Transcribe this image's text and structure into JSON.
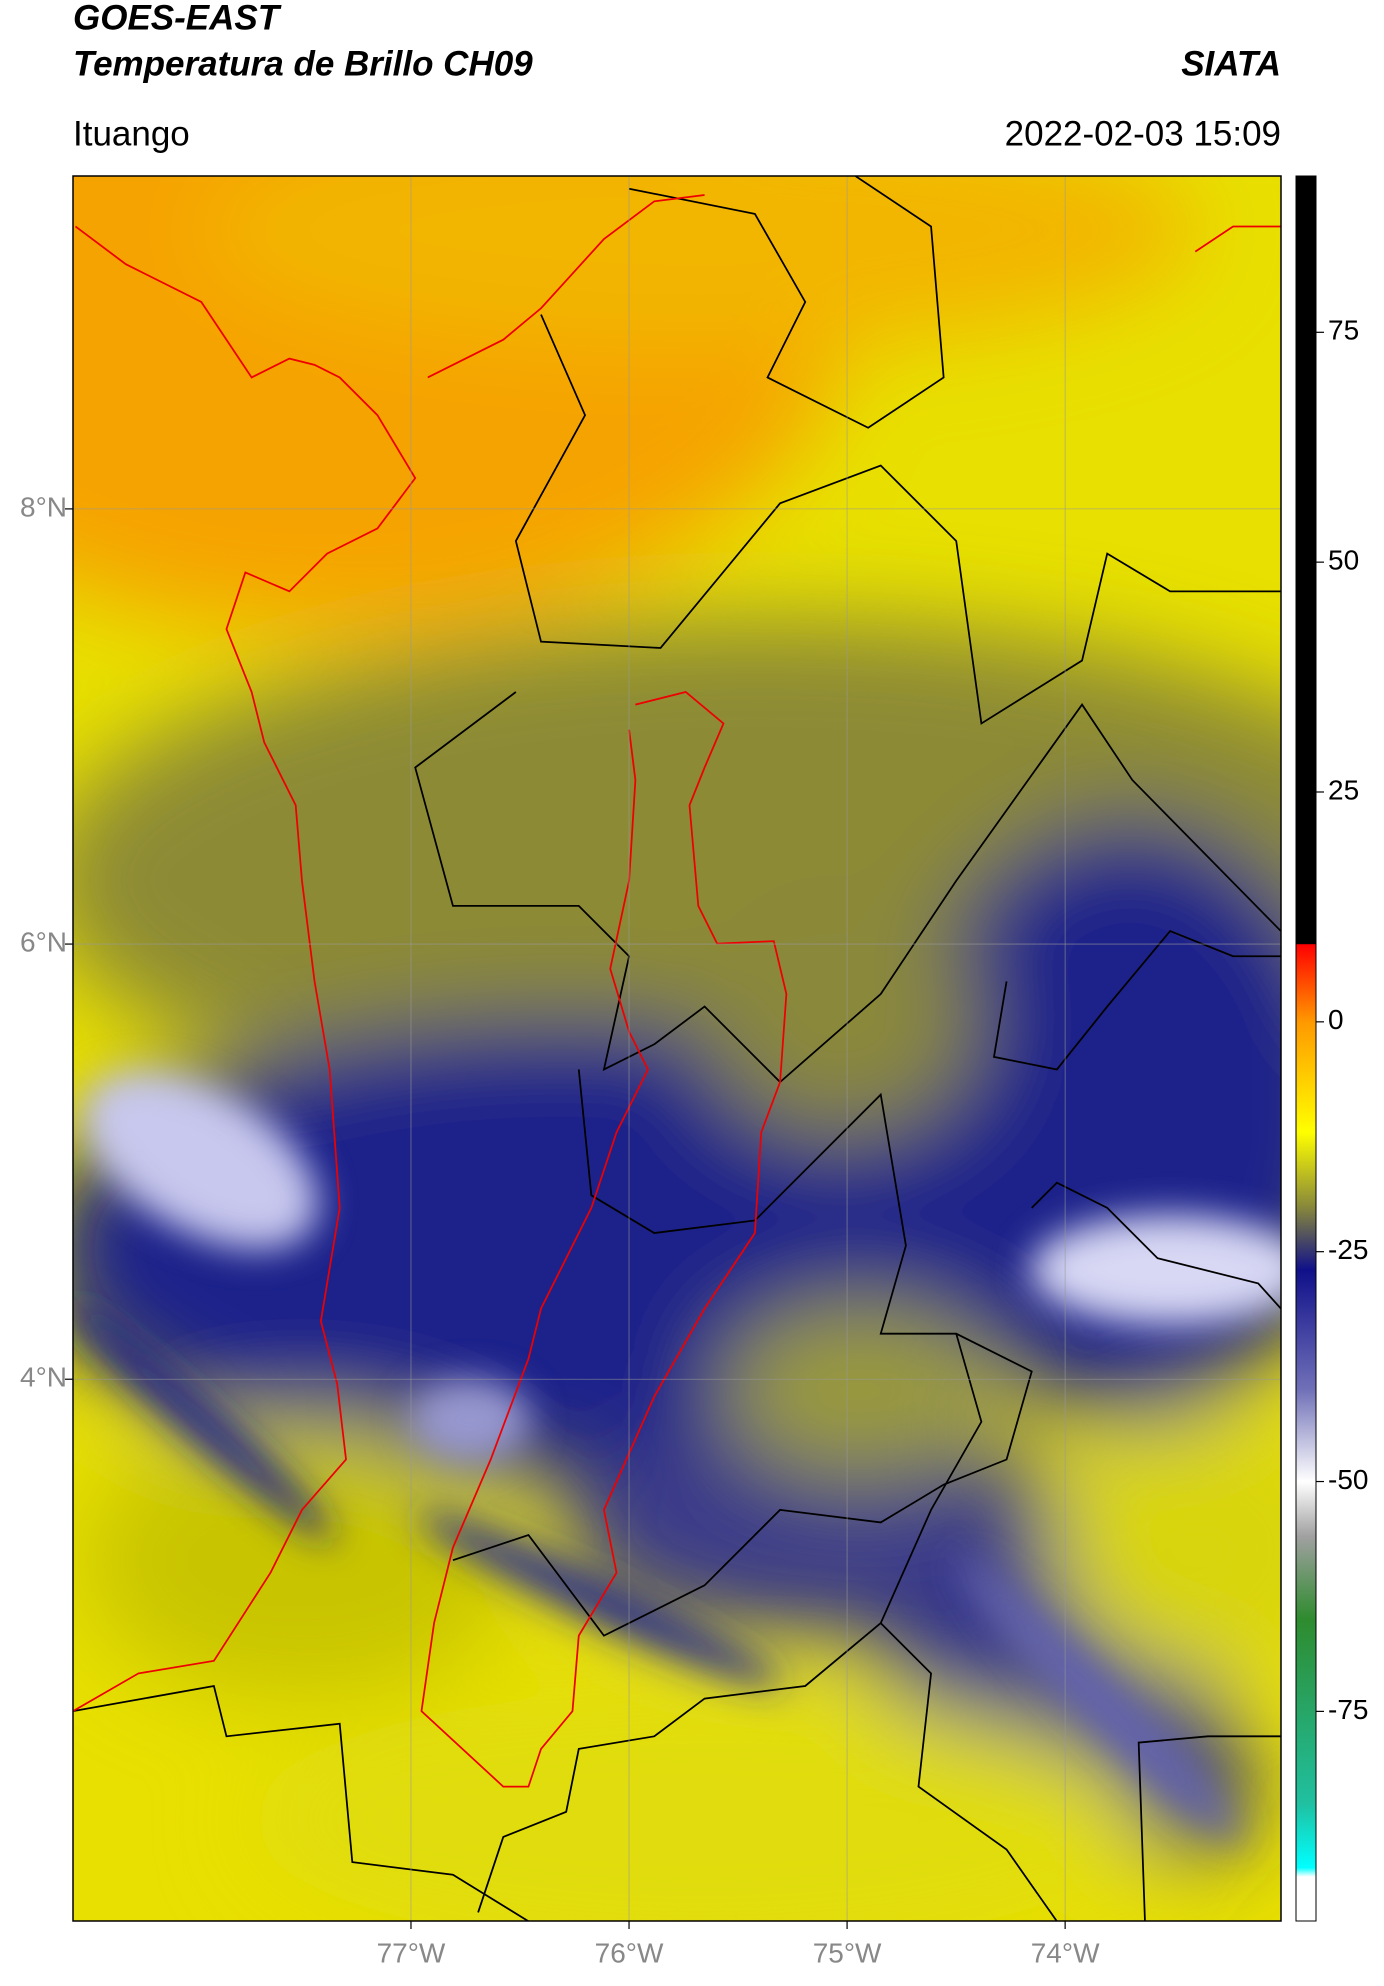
{
  "chart_data": {
    "type": "map",
    "title": "GOES-EAST",
    "subtitle": "Temperatura de Brillo CH09",
    "source": "SIATA",
    "location": "Ituango",
    "datetime": "2022-02-03 15:09",
    "xlim": [
      -78.55,
      -73.01
    ],
    "ylim": [
      1.51,
      9.53
    ],
    "xticks": [
      {
        "value": -77,
        "label": "77°W"
      },
      {
        "value": -76,
        "label": "76°W"
      },
      {
        "value": -75,
        "label": "75°W"
      },
      {
        "value": -74,
        "label": "74°W"
      }
    ],
    "yticks": [
      {
        "value": 4,
        "label": "4°N"
      },
      {
        "value": 6,
        "label": "6°N"
      },
      {
        "value": 8,
        "label": "8°N"
      }
    ],
    "grid": true,
    "colorbar": {
      "lim": [
        -97.8,
        92
      ],
      "ticks": [
        -75,
        -50,
        -25,
        0,
        25,
        50,
        75
      ],
      "colormap": [
        {
          "value": 92,
          "color": "#000000"
        },
        {
          "value": 8.5,
          "color": "#000000"
        },
        {
          "value": 8.4,
          "color": "#ff0000"
        },
        {
          "value": 0,
          "color": "#ff9900"
        },
        {
          "value": -12,
          "color": "#ffff00"
        },
        {
          "value": -20,
          "color": "#8a8a3a"
        },
        {
          "value": -27,
          "color": "#10108a"
        },
        {
          "value": -40,
          "color": "#7070b8"
        },
        {
          "value": -50,
          "color": "#ffffff"
        },
        {
          "value": -56,
          "color": "#a0a0a0"
        },
        {
          "value": -65,
          "color": "#2e8b2e"
        },
        {
          "value": -85,
          "color": "#20c0a0"
        },
        {
          "value": -92,
          "color": "#00ffff"
        },
        {
          "value": -93,
          "color": "#ffffff"
        },
        {
          "value": -97.8,
          "color": "#ffffff"
        }
      ]
    }
  }
}
